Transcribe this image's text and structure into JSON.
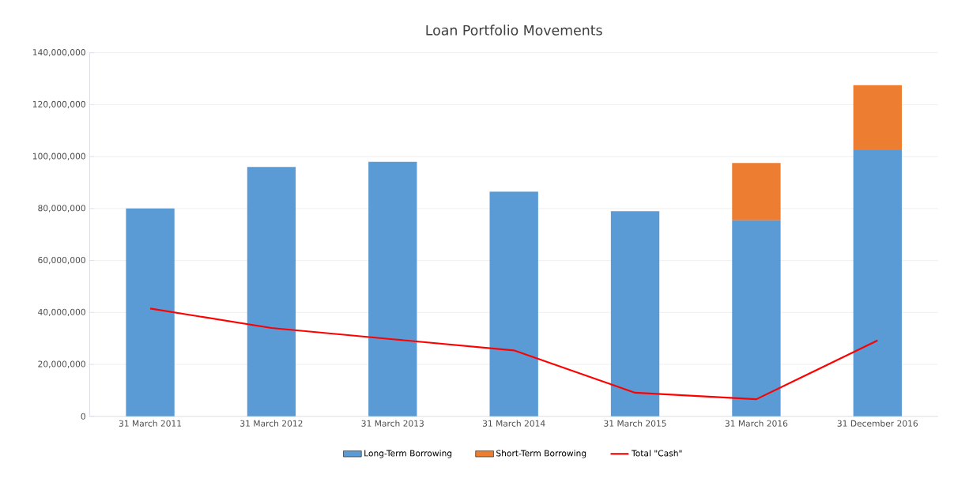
{
  "chart_data": {
    "type": "bar",
    "title": "Loan Portfolio Movements",
    "stacked": true,
    "categories": [
      "31 March 2011",
      "31 March 2012",
      "31 March 2013",
      "31 March 2014",
      "31 March 2015",
      "31 March 2016",
      "31 December 2016"
    ],
    "series": [
      {
        "name": "Long-Term Borrowing",
        "color": "#5b9bd5",
        "values": [
          80000000,
          96000000,
          98000000,
          86500000,
          79000000,
          75500000,
          102500000
        ]
      },
      {
        "name": "Short-Term Borrowing",
        "color": "#ed7d31",
        "values": [
          null,
          null,
          null,
          null,
          null,
          22000000,
          25000000
        ]
      },
      {
        "name": "Total \"Cash\"",
        "type": "line",
        "color": "#ff0000",
        "values": [
          41500000,
          34000000,
          29700000,
          25400000,
          9100000,
          6600000,
          29200000
        ]
      }
    ],
    "ylim": [
      0,
      140000000
    ],
    "yticks": [
      0,
      {
        "value": 20000000,
        "label": "20,000,000"
      },
      {
        "value": 40000000,
        "label": "40,000,000"
      },
      {
        "value": 60000000,
        "label": "60,000,000"
      },
      {
        "value": 80000000,
        "label": "80,000,000"
      },
      {
        "value": 100000000,
        "label": "100,000,000"
      },
      {
        "value": 120000000,
        "label": "120,000,000"
      },
      {
        "value": 140000000,
        "label": "140,000,000"
      }
    ],
    "grid": "y",
    "legend": "bottom"
  }
}
